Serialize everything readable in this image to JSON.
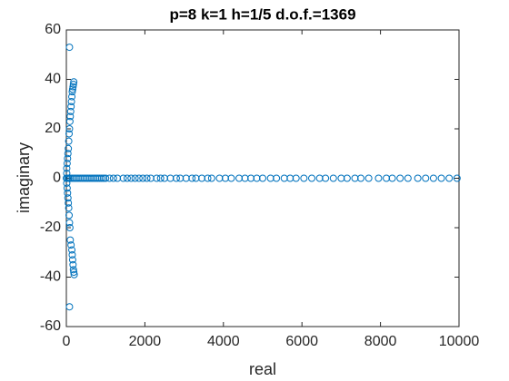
{
  "chart_data": {
    "type": "scatter",
    "title": "p=8 k=1 h=1/5 d.o.f.=1369",
    "x_label": "real",
    "y_label": "imaginary",
    "xlim": [
      0,
      10000
    ],
    "ylim": [
      -60,
      60
    ],
    "xticks": [
      0,
      2000,
      4000,
      6000,
      8000,
      10000
    ],
    "yticks": [
      -60,
      -40,
      -20,
      0,
      20,
      40,
      60
    ],
    "grid": false,
    "color": "#0072bd",
    "x": [
      80,
      190,
      180,
      170,
      160,
      150,
      140,
      130,
      120,
      110,
      100,
      90,
      80,
      70,
      60,
      50,
      40,
      30,
      20,
      10,
      10,
      10,
      20,
      30,
      40,
      50,
      60,
      70,
      80,
      90,
      100,
      120,
      140,
      150,
      160,
      170,
      180,
      190,
      200,
      80,
      0,
      30,
      60,
      100,
      150,
      200,
      250,
      300,
      350,
      400,
      450,
      500,
      550,
      600,
      650,
      700,
      750,
      800,
      850,
      900,
      950,
      1000,
      1100,
      1200,
      1300,
      1450,
      1550,
      1650,
      1750,
      1850,
      1950,
      2050,
      2150,
      2300,
      2400,
      2500,
      2650,
      2800,
      2900,
      3050,
      3200,
      3300,
      3450,
      3600,
      3700,
      3900,
      4050,
      4200,
      4400,
      4550,
      4700,
      4850,
      5000,
      5200,
      5350,
      5550,
      5700,
      5850,
      6050,
      6250,
      6450,
      6600,
      6800,
      7000,
      7150,
      7350,
      7500,
      7700,
      7950,
      8150,
      8300,
      8500,
      8700,
      8950,
      9150,
      9350,
      9550,
      9750,
      9950
    ],
    "y": [
      53,
      39,
      38,
      37,
      36,
      35,
      33,
      31,
      29,
      27,
      25,
      23,
      20,
      18,
      15,
      12,
      10,
      8,
      6,
      4,
      2,
      -2,
      -4,
      -6,
      -8,
      -10,
      -12,
      -15,
      -18,
      -20,
      -25,
      -27,
      -29,
      -31,
      -33,
      -35,
      -37,
      -38,
      -39,
      -52,
      0,
      0,
      0,
      0,
      0,
      0,
      0,
      0,
      0,
      0,
      0,
      0,
      0,
      0,
      0,
      0,
      0,
      0,
      0,
      0,
      0,
      0,
      0,
      0,
      0,
      0,
      0,
      0,
      0,
      0,
      0,
      0,
      0,
      0,
      0,
      0,
      0,
      0,
      0,
      0,
      0,
      0,
      0,
      0,
      0,
      0,
      0,
      0,
      0,
      0,
      0,
      0,
      0,
      0,
      0,
      0,
      0,
      0,
      0,
      0,
      0,
      0,
      0,
      0,
      0,
      0,
      0,
      0,
      0,
      0,
      0,
      0,
      0,
      0,
      0,
      0,
      0,
      0,
      0
    ]
  }
}
